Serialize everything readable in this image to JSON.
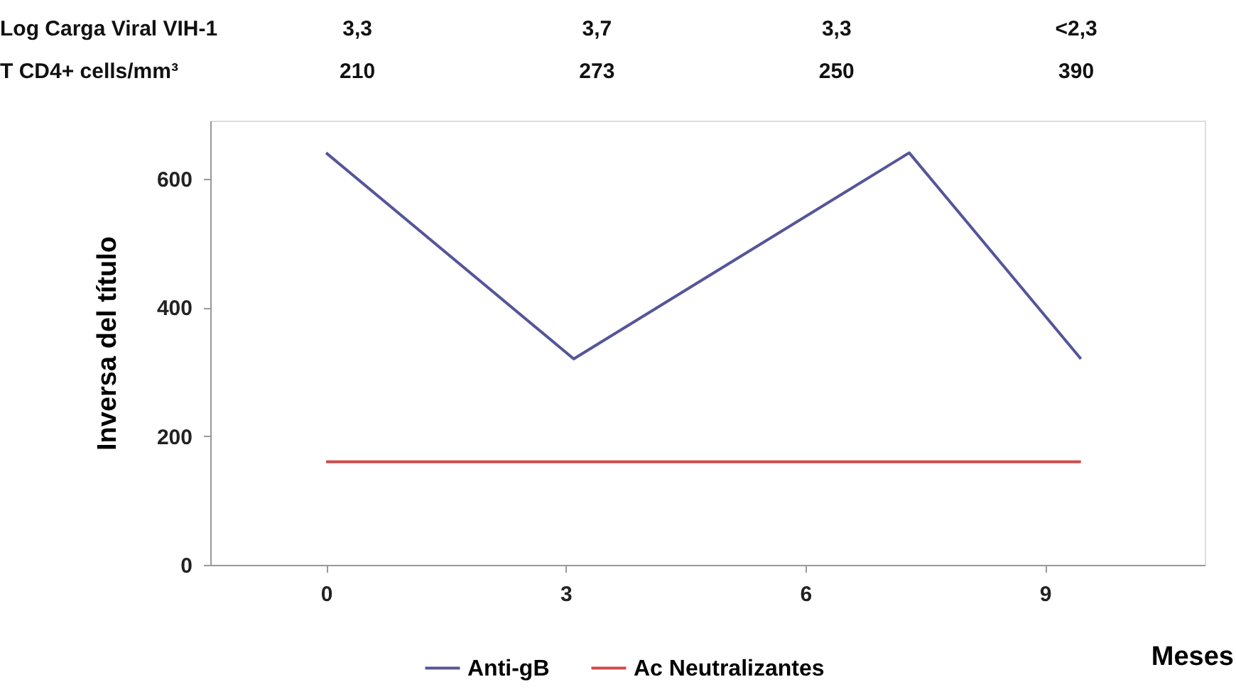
{
  "chart_data": {
    "type": "line",
    "xlabel": "Meses",
    "ylabel": "Inversa del título",
    "xlim": [
      -1.45,
      11
    ],
    "xticks": [
      0,
      3,
      6,
      9
    ],
    "ylim": [
      0,
      690
    ],
    "yticks": [
      0,
      200,
      400,
      600
    ],
    "series": [
      {
        "name": "Anti-gB",
        "color": "#55559a",
        "x": [
          0,
          3.1,
          7.3,
          9.45
        ],
        "values": [
          640,
          320,
          640,
          320
        ]
      },
      {
        "name": "Ac Neutralizantes",
        "color": "#d04a4a",
        "x": [
          0,
          3.1,
          7.3,
          9.45
        ],
        "values": [
          160,
          160,
          160,
          160
        ]
      }
    ],
    "annotations": [
      "Log Carga Viral VIH-1",
      "3,3",
      "3,7",
      "3,3",
      "<2,3",
      "T CD4+ cells/mm³",
      "210",
      "273",
      "250",
      "390"
    ],
    "grid": false,
    "legend": "bottom",
    "marker": "none",
    "line_style": "solid"
  }
}
